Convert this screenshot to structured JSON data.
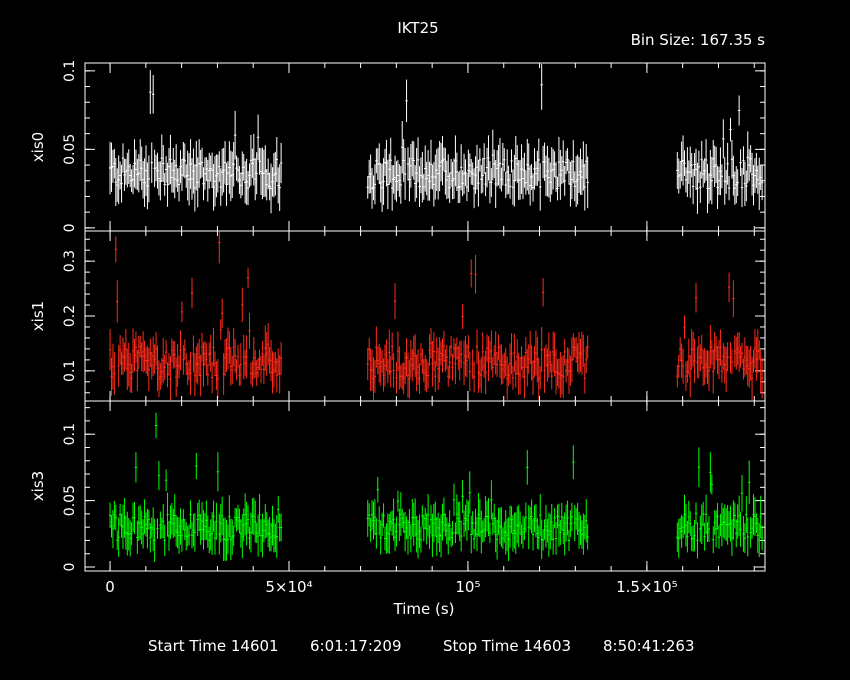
{
  "header": {
    "title": "IKT25",
    "bin_size": "Bin Size: 167.35 s"
  },
  "footer": {
    "start_label": "Start Time 14601",
    "start_value": "6:01:17:209",
    "stop_label": "Stop Time 14603",
    "stop_value": "8:50:41:263"
  },
  "colors": {
    "background": "#000000",
    "frame": "#ffffff",
    "xis0": "#ffffff",
    "xis1": "#ff2a1a",
    "xis3": "#00ff00"
  },
  "chart_data": {
    "type": "scatter",
    "title": "IKT25",
    "xlabel": "Time (s)",
    "xlim": [
      -7000,
      183000
    ],
    "x_ticks": [
      {
        "value": 0,
        "label": "0"
      },
      {
        "value": 50000,
        "label": "5×10⁴"
      },
      {
        "value": 100000,
        "label": "10⁵"
      },
      {
        "value": 150000,
        "label": "1.5×10⁵"
      }
    ],
    "bin_size_s": 167.35,
    "segments": [
      [
        0,
        48000
      ],
      [
        72000,
        133500
      ],
      [
        158500,
        182500
      ]
    ],
    "panels": [
      {
        "name": "xis0",
        "ylabel": "xis0",
        "ylim": [
          -0.002,
          0.105
        ],
        "y_ticks": [
          {
            "value": 0,
            "label": "0"
          },
          {
            "value": 0.05,
            "label": "0.05"
          },
          {
            "value": 0.1,
            "label": "0.1"
          }
        ],
        "typical_rate": 0.035,
        "spread": 0.01,
        "max_rate": 0.1,
        "error": 0.012
      },
      {
        "name": "xis1",
        "ylabel": "xis1",
        "ylim": [
          0.045,
          0.355
        ],
        "y_ticks": [
          {
            "value": 0.1,
            "label": "0.1"
          },
          {
            "value": 0.2,
            "label": "0.2"
          },
          {
            "value": 0.3,
            "label": "0.3"
          }
        ],
        "typical_rate": 0.115,
        "spread": 0.03,
        "max_rate": 0.34,
        "error": 0.03
      },
      {
        "name": "xis3",
        "ylabel": "xis3",
        "ylim": [
          -0.003,
          0.125
        ],
        "y_ticks": [
          {
            "value": 0,
            "label": "0"
          },
          {
            "value": 0.05,
            "label": "0.05"
          },
          {
            "value": 0.1,
            "label": "0.1"
          }
        ],
        "typical_rate": 0.03,
        "spread": 0.01,
        "max_rate": 0.12,
        "error": 0.012
      }
    ],
    "grid": false
  }
}
